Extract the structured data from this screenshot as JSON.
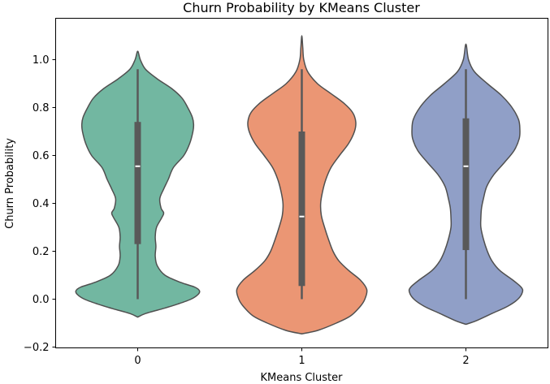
{
  "chart_data": {
    "type": "violin",
    "title": "Churn Probability by KMeans Cluster",
    "xlabel": "KMeans Cluster",
    "ylabel": "Churn Probability",
    "categories": [
      "0",
      "1",
      "2"
    ],
    "ylim": [
      -0.2,
      1.15
    ],
    "yticks": [
      -0.2,
      0.0,
      0.2,
      0.4,
      0.6,
      0.8,
      1.0
    ],
    "ytick_labels": [
      "−0.2",
      "0.0",
      "0.2",
      "0.4",
      "0.6",
      "0.8",
      "1.0"
    ],
    "grid": false,
    "series": [
      {
        "category": "0",
        "color": "#72b7a1",
        "min": 0.0,
        "q1": 0.23,
        "median": 0.555,
        "q3": 0.74,
        "max": 0.96,
        "density": [
          [
            -0.075,
            0.0
          ],
          [
            -0.06,
            0.12
          ],
          [
            -0.04,
            0.38
          ],
          [
            -0.02,
            0.62
          ],
          [
            0.0,
            0.82
          ],
          [
            0.02,
            0.93
          ],
          [
            0.035,
            0.95
          ],
          [
            0.05,
            0.88
          ],
          [
            0.07,
            0.66
          ],
          [
            0.1,
            0.42
          ],
          [
            0.14,
            0.3
          ],
          [
            0.18,
            0.27
          ],
          [
            0.22,
            0.28
          ],
          [
            0.26,
            0.27
          ],
          [
            0.3,
            0.29
          ],
          [
            0.34,
            0.37
          ],
          [
            0.36,
            0.4
          ],
          [
            0.38,
            0.36
          ],
          [
            0.42,
            0.34
          ],
          [
            0.46,
            0.4
          ],
          [
            0.5,
            0.47
          ],
          [
            0.55,
            0.55
          ],
          [
            0.6,
            0.71
          ],
          [
            0.65,
            0.8
          ],
          [
            0.7,
            0.85
          ],
          [
            0.73,
            0.86
          ],
          [
            0.76,
            0.84
          ],
          [
            0.8,
            0.77
          ],
          [
            0.84,
            0.68
          ],
          [
            0.88,
            0.52
          ],
          [
            0.92,
            0.3
          ],
          [
            0.96,
            0.12
          ],
          [
            1.0,
            0.04
          ],
          [
            1.035,
            0.0
          ]
        ]
      },
      {
        "category": "1",
        "color": "#eb9674",
        "min": 0.0,
        "q1": 0.055,
        "median": 0.345,
        "q3": 0.7,
        "max": 0.96,
        "density": [
          [
            -0.145,
            0.0
          ],
          [
            -0.13,
            0.25
          ],
          [
            -0.1,
            0.53
          ],
          [
            -0.07,
            0.75
          ],
          [
            -0.03,
            0.9
          ],
          [
            0.0,
            0.97
          ],
          [
            0.04,
            1.0
          ],
          [
            0.08,
            0.9
          ],
          [
            0.12,
            0.72
          ],
          [
            0.16,
            0.57
          ],
          [
            0.2,
            0.48
          ],
          [
            0.25,
            0.41
          ],
          [
            0.3,
            0.35
          ],
          [
            0.35,
            0.3
          ],
          [
            0.4,
            0.29
          ],
          [
            0.45,
            0.32
          ],
          [
            0.5,
            0.37
          ],
          [
            0.55,
            0.45
          ],
          [
            0.6,
            0.58
          ],
          [
            0.65,
            0.72
          ],
          [
            0.7,
            0.81
          ],
          [
            0.74,
            0.83
          ],
          [
            0.78,
            0.78
          ],
          [
            0.82,
            0.64
          ],
          [
            0.86,
            0.44
          ],
          [
            0.9,
            0.24
          ],
          [
            0.95,
            0.09
          ],
          [
            1.0,
            0.03
          ],
          [
            1.05,
            0.015
          ],
          [
            1.1,
            0.0
          ]
        ]
      },
      {
        "category": "2",
        "color": "#909fc7",
        "min": 0.0,
        "q1": 0.205,
        "median": 0.555,
        "q3": 0.755,
        "max": 0.96,
        "density": [
          [
            -0.105,
            0.0
          ],
          [
            -0.09,
            0.16
          ],
          [
            -0.06,
            0.4
          ],
          [
            -0.03,
            0.64
          ],
          [
            0.0,
            0.8
          ],
          [
            0.03,
            0.87
          ],
          [
            0.05,
            0.85
          ],
          [
            0.08,
            0.72
          ],
          [
            0.12,
            0.52
          ],
          [
            0.16,
            0.4
          ],
          [
            0.2,
            0.33
          ],
          [
            0.25,
            0.27
          ],
          [
            0.3,
            0.23
          ],
          [
            0.34,
            0.23
          ],
          [
            0.38,
            0.24
          ],
          [
            0.42,
            0.27
          ],
          [
            0.47,
            0.32
          ],
          [
            0.52,
            0.43
          ],
          [
            0.57,
            0.59
          ],
          [
            0.62,
            0.74
          ],
          [
            0.67,
            0.82
          ],
          [
            0.71,
            0.83
          ],
          [
            0.75,
            0.81
          ],
          [
            0.8,
            0.71
          ],
          [
            0.85,
            0.55
          ],
          [
            0.9,
            0.33
          ],
          [
            0.95,
            0.13
          ],
          [
            1.0,
            0.04
          ],
          [
            1.065,
            0.0
          ]
        ]
      }
    ]
  }
}
